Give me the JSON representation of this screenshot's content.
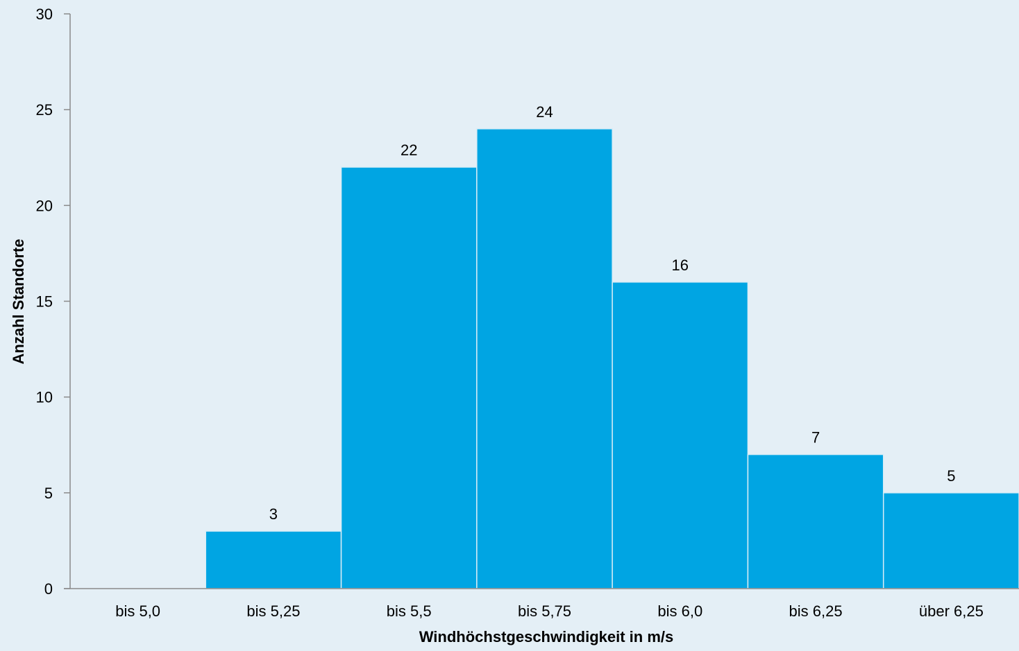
{
  "chart_data": {
    "type": "bar",
    "title": "",
    "xlabel": "Windhöchstgeschwindigkeit in m/s",
    "ylabel": "Anzahl Standorte",
    "categories": [
      "bis 5,0",
      "bis 5,25",
      "bis 5,5",
      "bis 5,75",
      "bis 6,0",
      "bis 6,25",
      "über 6,25"
    ],
    "values": [
      0,
      3,
      22,
      24,
      16,
      7,
      5
    ],
    "data_labels": [
      "",
      "3",
      "22",
      "24",
      "16",
      "7",
      "5"
    ],
    "ylim": [
      0,
      30
    ],
    "yticks": [
      0,
      5,
      10,
      15,
      20,
      25,
      30
    ],
    "grid": false,
    "legend": "none",
    "colors": {
      "bar": "#00a5e3",
      "bar_edge": "#d8ecf6",
      "axis": "#8a8a8a",
      "background": "#e4eff6"
    }
  }
}
